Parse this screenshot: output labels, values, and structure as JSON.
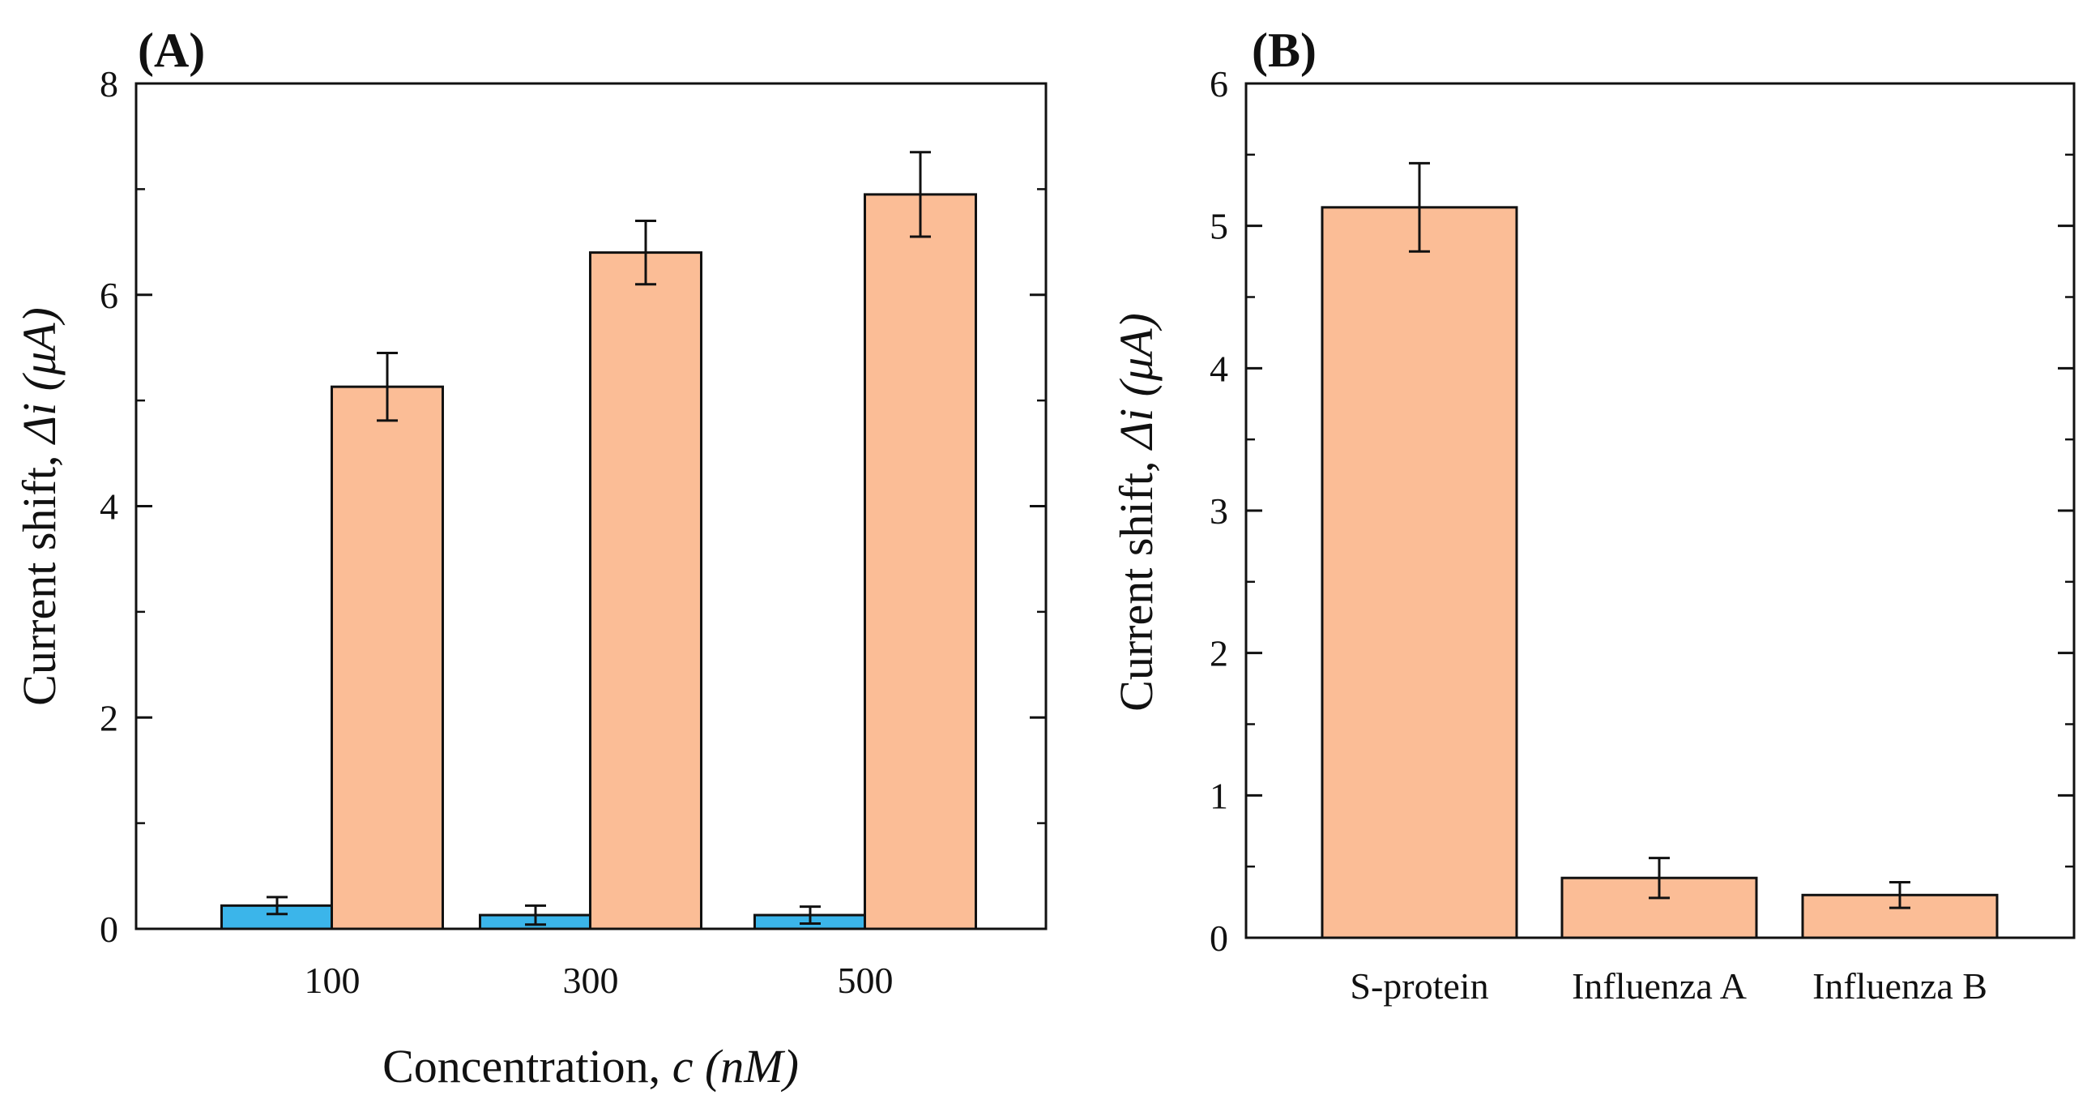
{
  "chart_data": [
    {
      "type": "bar",
      "panel_label": "(A)",
      "categories": [
        "100",
        "300",
        "500"
      ],
      "xlabel": "Concentration, ",
      "xlabel_var": "c",
      "xlabel_unit": " (nM)",
      "ylabel": "Current shift, ",
      "ylabel_var": "Δi",
      "ylabel_unit": " (μA)",
      "ylim": [
        0,
        8
      ],
      "yticks": [
        "0",
        "2",
        "4",
        "6",
        "8"
      ],
      "grid": false,
      "series": [
        {
          "color": "#3bb5ea",
          "values": [
            0.22,
            0.13,
            0.13
          ],
          "errors": [
            0.08,
            0.09,
            0.08
          ]
        },
        {
          "color": "#fbbd96",
          "values": [
            5.13,
            6.4,
            6.95
          ],
          "errors": [
            0.32,
            0.3,
            0.4
          ]
        }
      ]
    },
    {
      "type": "bar",
      "panel_label": "(B)",
      "categories": [
        "S-protein",
        "Influenza A",
        "Influenza B"
      ],
      "xlabel": "",
      "ylabel": "Current shift, ",
      "ylabel_var": "Δi",
      "ylabel_unit": " (μA)",
      "ylim": [
        0,
        6
      ],
      "yticks": [
        "0",
        "1",
        "2",
        "3",
        "4",
        "5",
        "6"
      ],
      "grid": false,
      "series": [
        {
          "color": "#fbbd96",
          "values": [
            5.13,
            0.42,
            0.3
          ],
          "errors": [
            0.31,
            0.14,
            0.09
          ]
        }
      ]
    }
  ]
}
